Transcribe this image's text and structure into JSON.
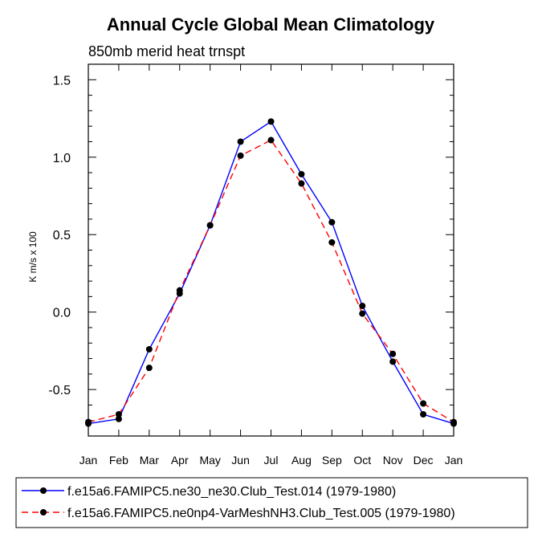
{
  "chart_data": {
    "type": "line",
    "title": "Annual Cycle Global Mean Climatology",
    "subtitle": "850mb merid heat trnspt",
    "xlabel": "",
    "ylabel": "K m/s x 100",
    "categories": [
      "Jan",
      "Feb",
      "Mar",
      "Apr",
      "May",
      "Jun",
      "Jul",
      "Aug",
      "Sep",
      "Oct",
      "Nov",
      "Dec",
      "Jan"
    ],
    "ylim": [
      -0.8,
      1.6
    ],
    "yticks": [
      -0.5,
      0.0,
      0.5,
      1.0,
      1.5
    ],
    "ytick_labels": [
      "-0.5",
      "0.0",
      "0.5",
      "1.0",
      "1.5"
    ],
    "series": [
      {
        "name": "f.e15a6.FAMIPC5.ne30_ne30.Club_Test.014 (1979-1980)",
        "color": "#0000ff",
        "dash": "solid",
        "values": [
          -0.72,
          -0.69,
          -0.24,
          0.12,
          0.56,
          1.1,
          1.23,
          0.89,
          0.58,
          0.04,
          -0.32,
          -0.66,
          -0.72
        ]
      },
      {
        "name": "f.e15a6.FAMIPC5.ne0np4-VarMeshNH3.Club_Test.005 (1979-1980)",
        "color": "#ff0000",
        "dash": "dashed",
        "values": [
          -0.71,
          -0.66,
          -0.36,
          0.14,
          0.56,
          1.01,
          1.11,
          0.83,
          0.45,
          -0.01,
          -0.27,
          -0.59,
          -0.71
        ]
      }
    ]
  }
}
